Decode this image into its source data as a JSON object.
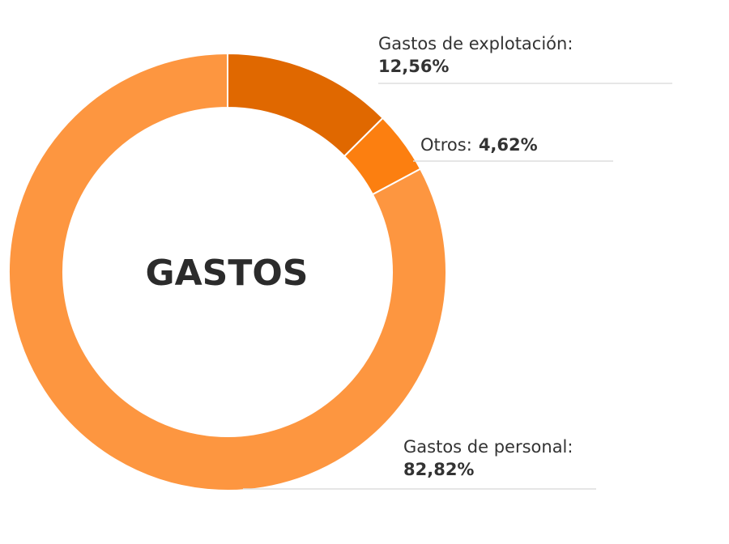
{
  "chart_data": {
    "type": "donut",
    "title": "GASTOS",
    "categories": [
      "Gastos de explotación:",
      "Otros:",
      "Gastos de personal:"
    ],
    "values": [
      12.56,
      4.62,
      82.82
    ],
    "value_labels": [
      "12,56%",
      "4,62%",
      "82,82%"
    ],
    "colors": [
      "#e06800",
      "#fc7f10",
      "#fd9640"
    ]
  }
}
